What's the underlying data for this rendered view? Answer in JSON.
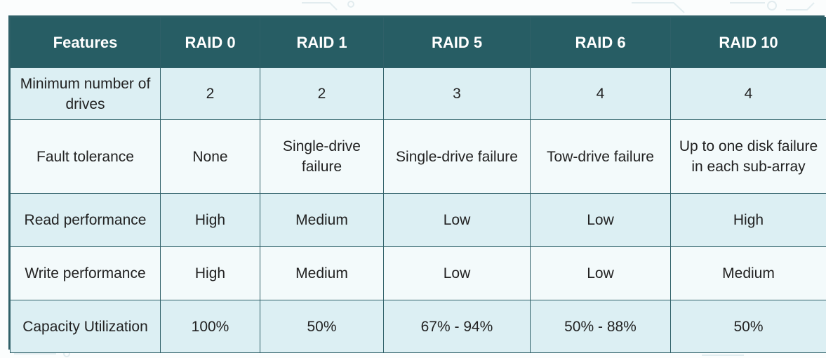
{
  "colors": {
    "header_bg": "#275d64",
    "header_text": "#ffffff",
    "row_light_blue": "#dceff3",
    "row_pale": "#f3fafb",
    "border": "#2f6068"
  },
  "table": {
    "headers": [
      "Features",
      "RAID 0",
      "RAID 1",
      "RAID 5",
      "RAID 6",
      "RAID 10"
    ],
    "rows": [
      [
        "Minimum number of drives",
        "2",
        "2",
        "3",
        "4",
        "4"
      ],
      [
        "Fault tolerance",
        "None",
        "Single-drive failure",
        "Single-drive failure",
        "Tow-drive failure",
        "Up to one disk failure in each sub-array"
      ],
      [
        "Read performance",
        "High",
        "Medium",
        "Low",
        "Low",
        "High"
      ],
      [
        "Write performance",
        "High",
        "Medium",
        "Low",
        "Low",
        "Medium"
      ],
      [
        "Capacity Utilization",
        "100%",
        "50%",
        "67% - 94%",
        "50% - 88%",
        "50%"
      ]
    ]
  }
}
